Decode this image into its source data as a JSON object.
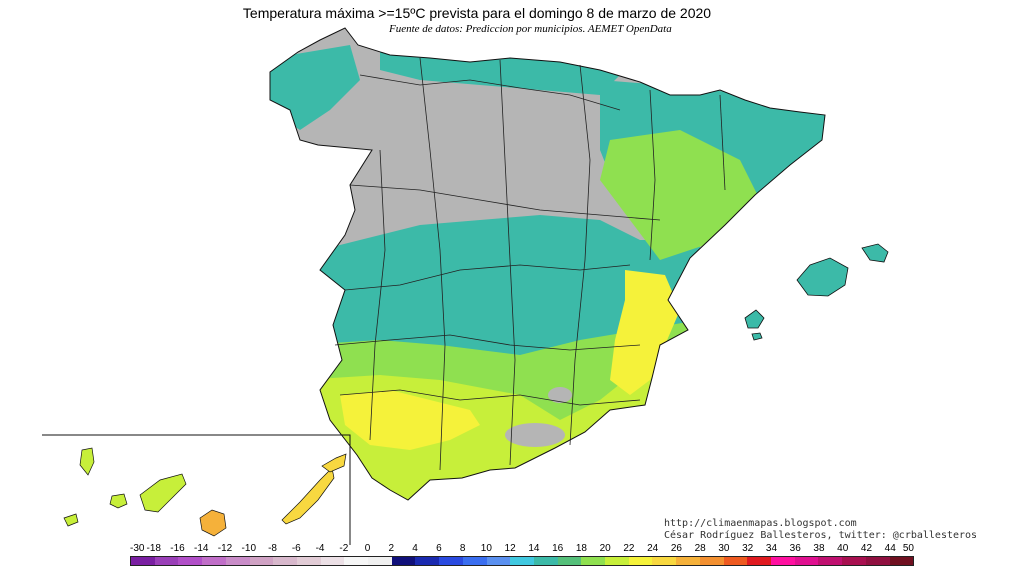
{
  "title": "Temperatura máxima >=15ºC prevista para el domingo 8 de marzo de 2020",
  "subtitle": "Fuente de datos: Prediccion por municipios. AEMET OpenData",
  "credits": {
    "url": "http://climaenmapas.blogspot.com",
    "author": "César Rodríguez Ballesteros, twitter: @crballesteros"
  },
  "map": {
    "region": "Spain (peninsula, Balearic Islands, Canary Islands inset)",
    "colors": {
      "below_threshold": "#b5b5b5",
      "teal_15_18": "#3cbaa8",
      "green_18_20": "#8fe050",
      "yellow_green_20_22": "#c7ef3a",
      "yellow_22_24": "#f5f23a"
    }
  },
  "legend": {
    "labels": [
      "-30",
      "-18",
      "-16",
      "-14",
      "-12",
      "-10",
      "-8",
      "-6",
      "-4",
      "-2",
      "0",
      "2",
      "4",
      "6",
      "8",
      "10",
      "12",
      "14",
      "16",
      "18",
      "20",
      "22",
      "24",
      "26",
      "28",
      "30",
      "32",
      "34",
      "36",
      "38",
      "40",
      "42",
      "44",
      "50"
    ],
    "colors": [
      "#7a1fa2",
      "#9a3fb8",
      "#b14fc8",
      "#c06ec8",
      "#c98cc8",
      "#d0a2c4",
      "#d8b8cc",
      "#e2ccd6",
      "#ece0e6",
      "#f6f6f6",
      "#f0f0f0",
      "#10107a",
      "#1a2ab0",
      "#2a4ae0",
      "#3a6ef0",
      "#5a90f0",
      "#40c8e0",
      "#3cbaa8",
      "#55c07a",
      "#8fe050",
      "#c7ef3a",
      "#f5f23a",
      "#f8d840",
      "#f5b13a",
      "#f39030",
      "#ee5a20",
      "#e01a20",
      "#ff10a0",
      "#e01090",
      "#c01070",
      "#a81050",
      "#901040",
      "#701020"
    ]
  }
}
